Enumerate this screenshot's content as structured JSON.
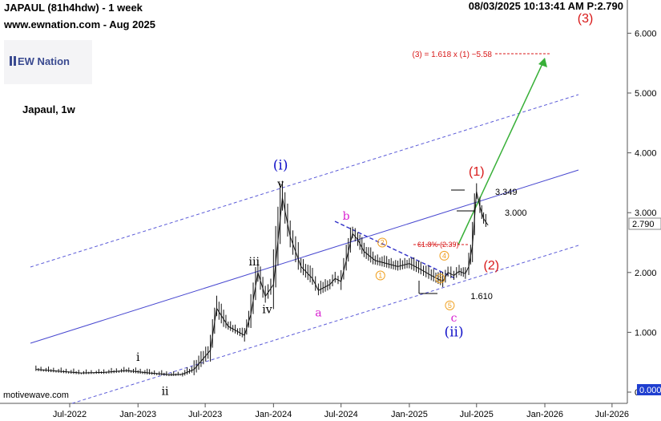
{
  "header": {
    "title": "JAPAUL (81h4hdw) - 1 week",
    "website": "www.ewnation.com  - Aug 2025",
    "timestamp_price": "08/03/2025 10:13:41 AM  P:2.790",
    "logo_text": "EW Nation",
    "chart_label": "Japaul, 1w",
    "watermark": "motivewave.com"
  },
  "chart_data": {
    "type": "line",
    "x_ticks": [
      "Jul-2022",
      "Jan-2023",
      "Jul-2023",
      "Jan-2024",
      "Jul-2024",
      "Jan-2025",
      "Jul-2025",
      "Jan-2026",
      "Jul-2026"
    ],
    "y_ticks": [
      "6.000",
      "5.000",
      "4.000",
      "3.000",
      "2.000",
      "1.000",
      "0"
    ],
    "ylim": [
      0,
      6.5
    ],
    "last_price_label": "2.790",
    "zero_badge": "0.000",
    "series": [
      {
        "values_x": [
          "2022-04-01",
          "2022-06-01",
          "2022-08-01",
          "2022-10-01",
          "2022-12-01",
          "2023-02-01",
          "2023-04-01",
          "2023-05-01",
          "2023-06-01",
          "2023-07-15",
          "2023-08-01",
          "2023-09-01",
          "2023-10-15",
          "2023-11-01",
          "2023-11-20",
          "2023-12-10",
          "2024-01-01",
          "2024-01-25",
          "2024-02-15",
          "2024-03-15",
          "2024-04-15",
          "2024-05-01",
          "2024-06-01",
          "2024-06-15",
          "2024-07-01",
          "2024-07-15",
          "2024-08-01",
          "2024-08-15",
          "2024-09-01",
          "2024-10-01",
          "2024-11-01",
          "2024-12-01",
          "2025-01-01",
          "2025-02-01",
          "2025-03-01",
          "2025-04-01",
          "2025-04-15",
          "2025-05-01",
          "2025-05-15",
          "2025-06-01",
          "2025-06-10",
          "2025-06-20",
          "2025-07-01",
          "2025-07-10",
          "2025-07-20",
          "2025-08-01"
        ],
        "values": [
          0.38,
          0.35,
          0.32,
          0.33,
          0.36,
          0.32,
          0.29,
          0.3,
          0.38,
          0.7,
          1.4,
          1.1,
          0.95,
          1.3,
          2.0,
          1.6,
          1.8,
          3.25,
          2.6,
          2.1,
          1.9,
          1.7,
          1.8,
          1.9,
          1.85,
          2.2,
          2.65,
          2.55,
          2.35,
          2.2,
          2.15,
          2.1,
          2.15,
          2.05,
          1.95,
          1.85,
          2.0,
          1.95,
          2.02,
          1.98,
          2.1,
          2.45,
          3.35,
          3.1,
          2.9,
          2.79
        ]
      }
    ],
    "annotations": {
      "minor_waves": [
        {
          "label": "i",
          "date": "2023-01-01",
          "price": 0.52
        },
        {
          "label": "ii",
          "date": "2023-03-15",
          "price": -0.05
        },
        {
          "label": "iii",
          "date": "2023-11-10",
          "price": 2.12
        },
        {
          "label": "iv",
          "date": "2023-12-15",
          "price": 1.32
        },
        {
          "label": "v",
          "date": "2024-01-20",
          "price": 3.42
        }
      ],
      "blue_waves": [
        {
          "label": "(i)",
          "date": "2024-01-20",
          "price": 3.72
        },
        {
          "label": "(ii)",
          "date": "2025-05-01",
          "price": 0.93
        }
      ],
      "abc_waves": [
        {
          "label": "a",
          "date": "2024-05-01",
          "price": 1.27
        },
        {
          "label": "b",
          "date": "2024-07-15",
          "price": 2.88
        },
        {
          "label": "c",
          "date": "2025-05-01",
          "price": 1.18
        }
      ],
      "sub_waves": [
        {
          "label": "1",
          "date": "2024-10-15",
          "price": 1.95
        },
        {
          "label": "2",
          "date": "2024-10-20",
          "price": 2.5
        },
        {
          "label": "3",
          "date": "2025-03-25",
          "price": 1.9
        },
        {
          "label": "4",
          "date": "2025-04-05",
          "price": 2.28
        },
        {
          "label": "5",
          "date": "2025-04-20",
          "price": 1.45
        }
      ],
      "red_waves": [
        {
          "label": "(1)",
          "date": "2025-07-01",
          "price": 3.62
        },
        {
          "label": "(2)",
          "date": "2025-08-10",
          "price": 2.05
        },
        {
          "label": "(3)",
          "date": "2026-04-20",
          "price": 6.18
        }
      ],
      "price_labels": [
        {
          "label": "3.349",
          "date": "2025-08-20",
          "price": 3.35
        },
        {
          "label": "3.000",
          "date": "2025-09-15",
          "price": 3.0
        },
        {
          "label": "1.610",
          "date": "2025-06-15",
          "price": 1.61
        }
      ],
      "fib_label": "61.8% (2.39)",
      "target_label": "(3) = 1.618 x (1) ~5.58"
    }
  }
}
